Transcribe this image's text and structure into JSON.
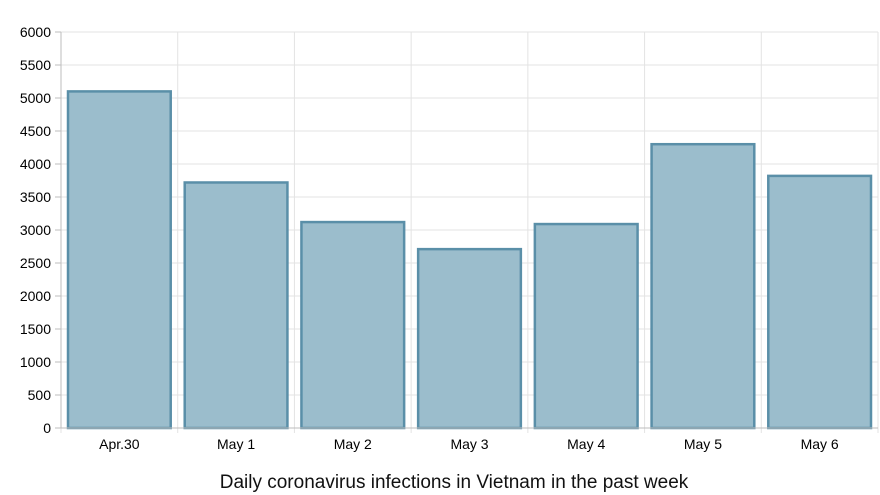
{
  "chart_data": {
    "type": "bar",
    "title": "Daily coronavirus infections in Vietnam in the past week",
    "xlabel": "",
    "ylabel": "",
    "categories": [
      "Apr.30",
      "May 1",
      "May 2",
      "May 3",
      "May 4",
      "May 5",
      "May 6"
    ],
    "values": [
      5100,
      3720,
      3120,
      2710,
      3090,
      4300,
      3820
    ],
    "ylim": [
      0,
      6000
    ],
    "yticks": [
      "0",
      "500",
      "1000",
      "1500",
      "2000",
      "2500",
      "3000",
      "3500",
      "4000",
      "4500",
      "5000",
      "5500",
      "6000"
    ],
    "grid": true,
    "legend": "none",
    "colors": {
      "bar_fill": "#9bbdcc",
      "bar_stroke": "#5a8fa8",
      "grid": "#e3e3e3",
      "axis": "#bdbdbd"
    }
  }
}
